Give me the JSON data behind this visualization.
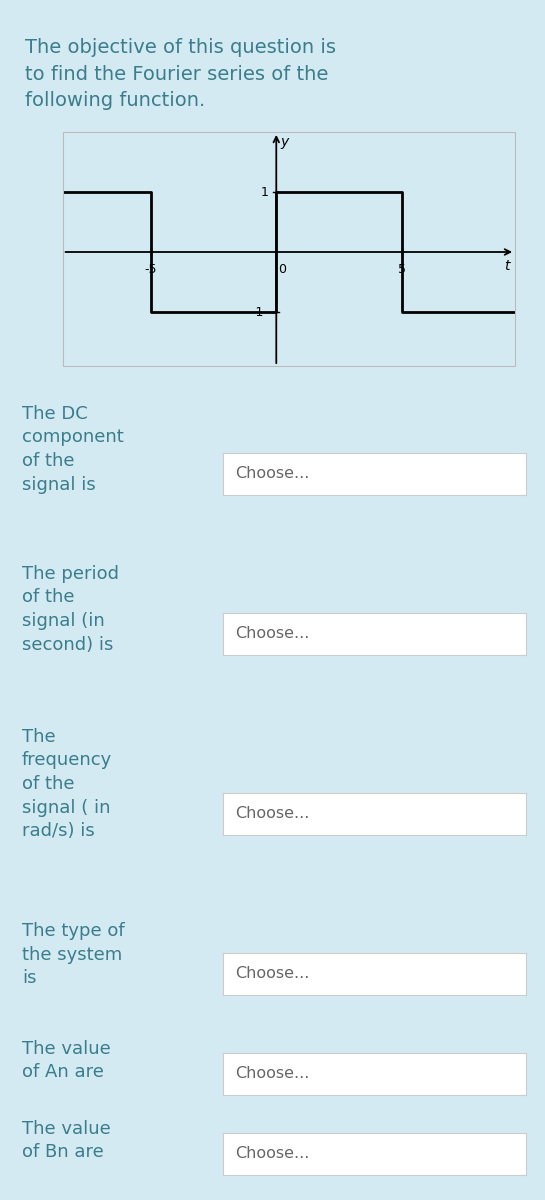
{
  "title_text": "The objective of this question is\nto find the Fourier series of the\nfollowing function.",
  "bg_color": "#d4eaf2",
  "plot_bg_color": "#ffffff",
  "text_color": "#3a7d8c",
  "choose_text": "Choose...",
  "choose_bg": "#ffffff",
  "choose_text_color": "#666666",
  "rows": [
    {
      "label": "The DC\ncomponent\nof the\nsignal is",
      "lines": 4
    },
    {
      "label": "The period\nof the\nsignal (in\nsecond) is",
      "lines": 4
    },
    {
      "label": "The\nfrequency\nof the\nsignal ( in\nrad/s) is",
      "lines": 5
    },
    {
      "label": "The type of\nthe system\nis",
      "lines": 3
    },
    {
      "label": "The value\nof An are",
      "lines": 2
    },
    {
      "label": "The value\nof Bn are",
      "lines": 2
    }
  ],
  "graph": {
    "xlim": [
      -8.5,
      9.5
    ],
    "ylim": [
      -1.9,
      2.0
    ],
    "signal_x": [
      -8.5,
      -5,
      -5,
      0,
      0,
      5,
      5,
      9.5
    ],
    "signal_y": [
      1,
      1,
      -1,
      -1,
      1,
      1,
      -1,
      -1
    ],
    "xtick_vals": [
      -5,
      5
    ],
    "xtick_labels": [
      "-5",
      "5"
    ],
    "ytick_vals": [
      1,
      -1
    ],
    "ytick_labels": [
      "1",
      "-1"
    ],
    "xlabel": "t",
    "ylabel": "y"
  }
}
